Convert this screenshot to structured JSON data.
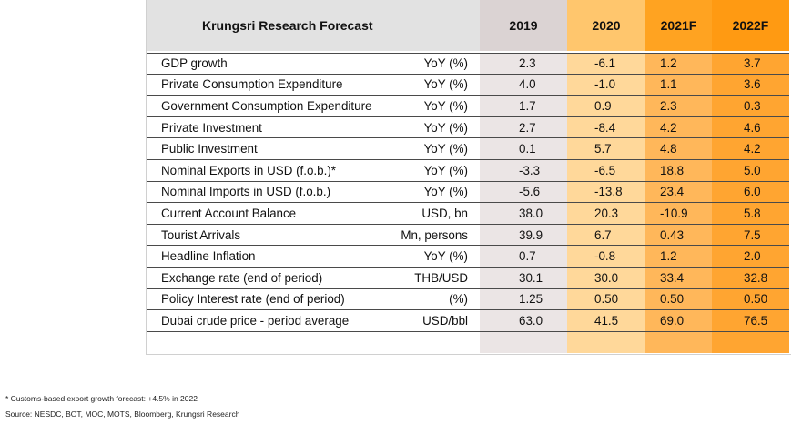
{
  "table": {
    "title": "Krungsri Research Forecast",
    "years": [
      "2019",
      "2020",
      "2021F",
      "2022F"
    ],
    "rows": [
      {
        "label": "GDP growth",
        "unit": "YoY (%)",
        "v": [
          "2.3",
          "-6.1",
          "1.2",
          "3.7"
        ]
      },
      {
        "label": "Private Consumption Expenditure",
        "unit": "YoY (%)",
        "v": [
          "4.0",
          "-1.0",
          "1.1",
          "3.6"
        ]
      },
      {
        "label": "Government Consumption Expenditure",
        "unit": "YoY (%)",
        "v": [
          "1.7",
          "0.9",
          "2.3",
          "0.3"
        ]
      },
      {
        "label": "Private Investment",
        "unit": "YoY (%)",
        "v": [
          "2.7",
          "-8.4",
          "4.2",
          "4.6"
        ]
      },
      {
        "label": "Public Investment",
        "unit": "YoY (%)",
        "v": [
          "0.1",
          "5.7",
          "4.8",
          "4.2"
        ]
      },
      {
        "label": "Nominal Exports in USD (f.o.b.)*",
        "unit": "YoY (%)",
        "v": [
          "-3.3",
          "-6.5",
          "18.8",
          "5.0"
        ]
      },
      {
        "label": "Nominal Imports in USD (f.o.b.)",
        "unit": "YoY (%)",
        "v": [
          "-5.6",
          "-13.8",
          "23.4",
          "6.0"
        ]
      },
      {
        "label": "Current Account Balance",
        "unit": "USD, bn",
        "v": [
          "38.0",
          "20.3",
          "-10.9",
          "5.8"
        ]
      },
      {
        "label": "Tourist Arrivals",
        "unit": "Mn, persons",
        "v": [
          "39.9",
          "6.7",
          "0.43",
          "7.5"
        ]
      },
      {
        "label": "Headline Inflation",
        "unit": "YoY (%)",
        "v": [
          "0.7",
          "-0.8",
          "1.2",
          "2.0"
        ]
      },
      {
        "label": "Exchange rate (end of period)",
        "unit": "THB/USD",
        "v": [
          "30.1",
          "30.0",
          "33.4",
          "32.8"
        ]
      },
      {
        "label": "Policy Interest rate (end of period)",
        "unit": "(%)",
        "v": [
          "1.25",
          "0.50",
          "0.50",
          "0.50"
        ]
      },
      {
        "label": "Dubai crude price - period average",
        "unit": "USD/bbl",
        "v": [
          "63.0",
          "41.5",
          "69.0",
          "76.5"
        ]
      }
    ]
  },
  "footnotes": {
    "note": "* Customs-based export growth forecast: +4.5% in 2022",
    "source": "Source: NESDC, BOT, MOC, MOTS, Bloomberg, Krungsri Research"
  }
}
